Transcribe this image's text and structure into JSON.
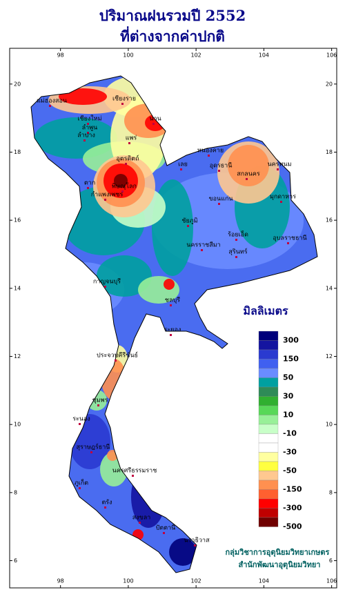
{
  "header": {
    "title": "ปริมาณฝนรวมปี  2552",
    "subtitle": "ที่ต่างจากค่าปกติ"
  },
  "map": {
    "lonlim": [
      96.5,
      106.15
    ],
    "latlim": [
      5.2,
      21.05
    ],
    "lon_ticks": [
      98,
      100,
      102,
      104,
      106
    ],
    "lat_ticks": [
      20,
      18,
      16,
      14,
      12,
      10,
      8,
      6
    ],
    "provinces": [
      "เชียงราย",
      "แม่ฮ่องสอน",
      "น่าน",
      "เชียงใหม่",
      "ลำพูน",
      "ลำปาง",
      "แพร่",
      "อุตรดิตถ์",
      "ตาก",
      "พิษณุโลก",
      "กำแพงเพชร",
      "หนองคาย",
      "อุดรธานี",
      "สกลนคร",
      "นครพนม",
      "มุกดาหาร",
      "เลย",
      "ขอนแก่น",
      "ชัยภูมิ",
      "นครราชสีมา",
      "ร้อยเอ็ด",
      "สุรินทร์",
      "อุบลราชธานี",
      "กาญจนบุรี",
      "ชลบุรี",
      "ระยอง",
      "ประจวบคีรีขันธ์",
      "ชุมพร",
      "ระนอง",
      "สุราษฎร์ธานี",
      "นครศรีธรรมราช",
      "ภูเก็ต",
      "ตรัง",
      "สงขลา",
      "ปัตตานี",
      "นราธิวาส"
    ]
  },
  "legend": {
    "title": "มิลลิเมตร",
    "colors": [
      "#00007a",
      "#1414a0",
      "#2a3ad0",
      "#4060f0",
      "#6a8cff",
      "#00a0a0",
      "#2e8b57",
      "#30b030",
      "#58d858",
      "#98f098",
      "#c8ffc8",
      "#ffffff",
      "#ffffff",
      "#ffffa0",
      "#ffff40",
      "#ffc890",
      "#ff9050",
      "#ff6030",
      "#ff0000",
      "#c00000",
      "#700000"
    ],
    "labels": [
      300,
      150,
      50,
      30,
      10,
      -10,
      -30,
      -50,
      -150,
      -300,
      -500
    ]
  },
  "credits": [
    "กลุ่มวิชาการอุตุนิยมวิทยาเกษตร",
    "สำนักพัฒนาอุตุนิยมวิทยา"
  ]
}
